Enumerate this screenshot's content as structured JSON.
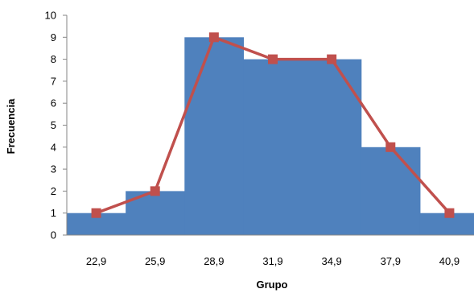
{
  "chart_data": {
    "type": "bar",
    "title": "",
    "xlabel": "Grupo",
    "ylabel": "Frecuencia",
    "ylim": [
      0,
      10
    ],
    "yticks": [
      "0",
      "1",
      "2",
      "3",
      "4",
      "5",
      "6",
      "7",
      "8",
      "9",
      "10"
    ],
    "categories": [
      "22,9",
      "25,9",
      "28,9",
      "31,9",
      "34,9",
      "37,9",
      "40,9"
    ],
    "x": [
      22.9,
      25.9,
      28.9,
      31.9,
      34.9,
      37.9,
      40.9
    ],
    "series": [
      {
        "kind": "histogram",
        "values": [
          1,
          2,
          9,
          8,
          8,
          4,
          1
        ],
        "color": "#4F81BD"
      },
      {
        "kind": "frequency-polygon",
        "values": [
          1,
          2,
          9,
          8,
          8,
          4,
          1
        ],
        "color": "#C0504D",
        "marker": "square"
      }
    ],
    "grid": false,
    "legend": "none"
  }
}
